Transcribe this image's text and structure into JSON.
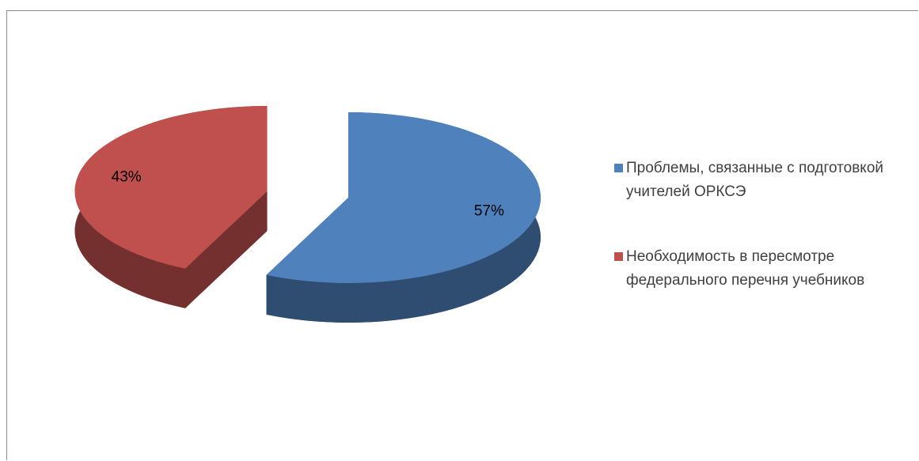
{
  "chart_data": {
    "type": "pie",
    "categories": [
      "Проблемы, связанные с подготовкой учителей ОРКСЭ",
      "Необходимость в пересмотре федерального перечня учебников"
    ],
    "values": [
      57,
      43
    ],
    "value_labels": [
      "57%",
      "43%"
    ],
    "colors": [
      "#4f81bd",
      "#c0504d"
    ],
    "legend": "right"
  }
}
